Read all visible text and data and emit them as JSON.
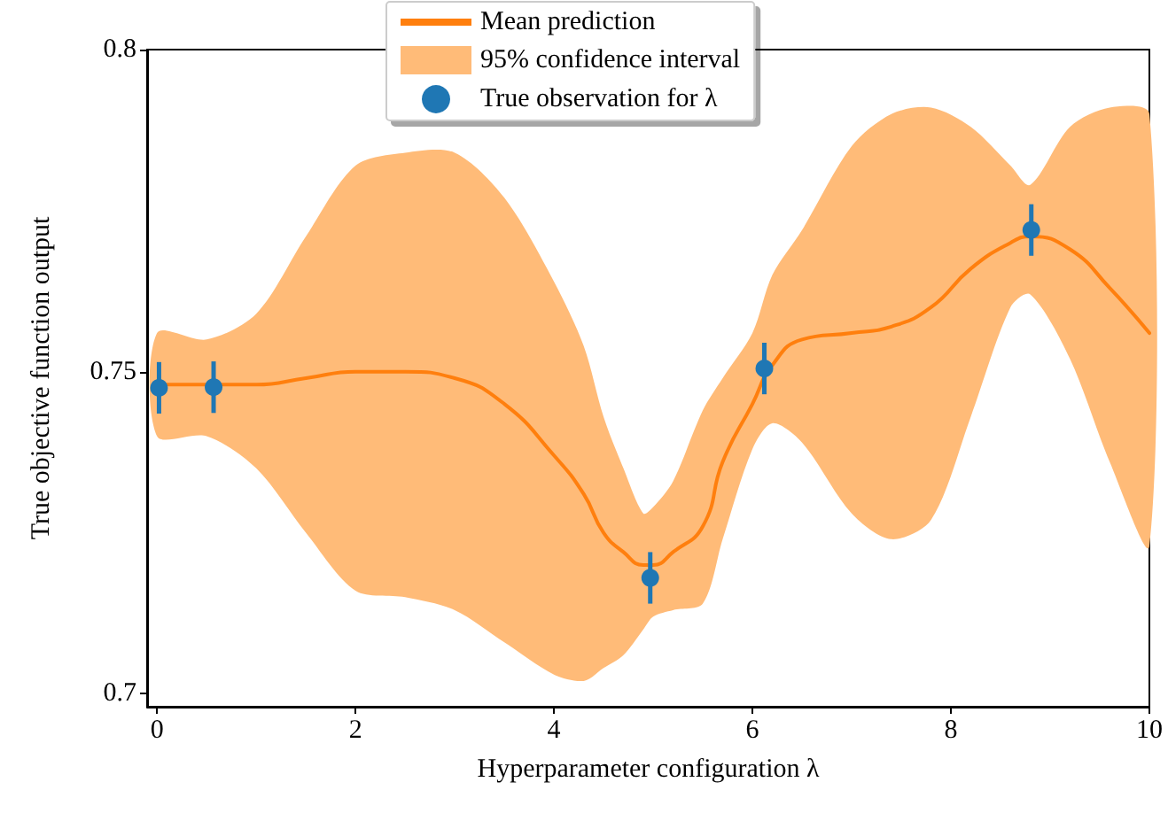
{
  "chart_data": {
    "type": "line",
    "xlabel": "Hyperparameter configuration λ",
    "ylabel": "True objective function output",
    "xlim": [
      -0.1,
      10
    ],
    "xticks": [
      0,
      2,
      4,
      6,
      8,
      10
    ],
    "ylim": [
      0.698,
      0.8
    ],
    "yticks": [
      0.7,
      0.75,
      0.8
    ],
    "grid": false,
    "legend": "top",
    "series": [
      {
        "name": "Mean prediction",
        "type": "line",
        "color": "#ff7f0e",
        "marker": "none",
        "line_style": "solid",
        "x": [
          0,
          0.5,
          1,
          1.5,
          2,
          2.5,
          3,
          3.5,
          4,
          4.3,
          4.5,
          4.7,
          4.9,
          5,
          5.2,
          5.5,
          5.7,
          6,
          6.2,
          6.5,
          7,
          7.4,
          7.8,
          8.2,
          8.6,
          8.8,
          9.2,
          9.6,
          10
        ],
        "values": [
          0.748,
          0.748,
          0.748,
          0.749,
          0.75,
          0.75,
          0.749,
          0.745,
          0.737,
          0.731,
          0.725,
          0.722,
          0.72,
          0.72,
          0.722,
          0.726,
          0.736,
          0.745,
          0.751,
          0.755,
          0.756,
          0.757,
          0.76,
          0.766,
          0.77,
          0.771,
          0.769,
          0.763,
          0.756
        ],
        "lower": [
          0.74,
          0.74,
          0.735,
          0.725,
          0.716,
          0.715,
          0.713,
          0.708,
          0.703,
          0.702,
          0.704,
          0.706,
          0.71,
          0.712,
          0.713,
          0.714,
          0.724,
          0.738,
          0.742,
          0.739,
          0.728,
          0.724,
          0.727,
          0.743,
          0.76,
          0.762,
          0.752,
          0.736,
          0.723
        ],
        "upper": [
          0.756,
          0.755,
          0.759,
          0.771,
          0.782,
          0.784,
          0.784,
          0.777,
          0.764,
          0.754,
          0.743,
          0.735,
          0.728,
          0.729,
          0.733,
          0.744,
          0.749,
          0.756,
          0.765,
          0.772,
          0.785,
          0.79,
          0.791,
          0.788,
          0.782,
          0.779,
          0.788,
          0.791,
          0.79
        ]
      },
      {
        "name": "95% confidence interval",
        "type": "area",
        "color": "#ffbb78"
      },
      {
        "name": "True observation for λ",
        "type": "scatter",
        "color": "#1f77b4",
        "marker": "circle",
        "x": [
          0.02,
          0.57,
          4.97,
          6.12,
          8.81
        ],
        "values": [
          0.7475,
          0.7476,
          0.718,
          0.7505,
          0.772
        ],
        "errors": [
          0.004,
          0.004,
          0.004,
          0.004,
          0.004
        ]
      }
    ]
  }
}
